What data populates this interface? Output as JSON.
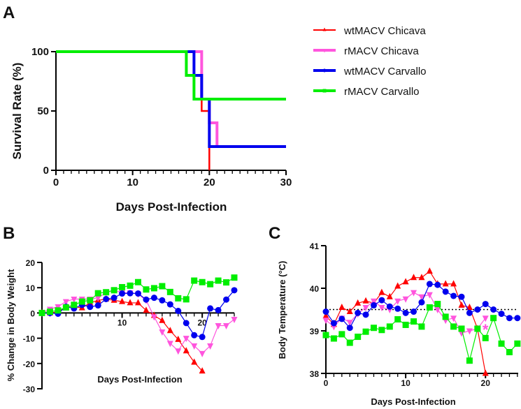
{
  "colors": {
    "wtChicava": "#ff0000",
    "rChicava": "#ff55dd",
    "wtCarvallo": "#0000ee",
    "rCarvallo": "#00ee00"
  },
  "legend": [
    "wtMACV Chicava",
    "rMACV Chicava",
    "wtMACV Carvallo",
    "rMACV Carvallo"
  ],
  "chart_data": [
    {
      "panel": "A",
      "type": "line",
      "subtype": "survival-step",
      "xlabel": "Days Post-Infection",
      "ylabel": "Survival Rate (%)",
      "xlim": [
        0,
        30
      ],
      "ylim": [
        0,
        100
      ],
      "xticks": [
        "0",
        "10",
        "20",
        "30"
      ],
      "yticks": [
        "0",
        "50",
        "100"
      ],
      "legend_position": "right",
      "series": [
        {
          "name": "wtMACV Chicava",
          "key": "wtChicava",
          "steps": [
            [
              0,
              100
            ],
            [
              19,
              50
            ],
            [
              20,
              0
            ]
          ],
          "end": 20
        },
        {
          "name": "rMACV Chicava",
          "key": "rChicava",
          "steps": [
            [
              0,
              100
            ],
            [
              19,
              60
            ],
            [
              20,
              40
            ],
            [
              21,
              20
            ]
          ],
          "end": 30
        },
        {
          "name": "wtMACV Carvallo",
          "key": "wtCarvallo",
          "steps": [
            [
              0,
              100
            ],
            [
              18,
              80
            ],
            [
              19,
              60
            ],
            [
              20,
              20
            ]
          ],
          "end": 30
        },
        {
          "name": "rMACV Carvallo",
          "key": "rCarvallo",
          "steps": [
            [
              0,
              100
            ],
            [
              17,
              80
            ],
            [
              18,
              60
            ]
          ],
          "end": 30
        }
      ]
    },
    {
      "panel": "B",
      "type": "line",
      "xlabel": "Days Post-Infection",
      "ylabel": "% Change in Body Weight",
      "xlim": [
        0,
        24
      ],
      "ylim": [
        -30,
        20
      ],
      "xticks": [
        "10",
        "20"
      ],
      "yticks": [
        "-30",
        "-20",
        "-10",
        "0",
        "10",
        "20"
      ],
      "series": [
        {
          "name": "wtMACV Chicava",
          "key": "wtChicava",
          "marker": "triangle-up",
          "values": [
            0,
            0,
            0.5,
            2,
            2.5,
            2,
            4,
            5,
            5.5,
            5,
            4.5,
            4,
            4,
            1,
            -1,
            -3,
            -7,
            -10.5,
            -15,
            -19.5,
            -23
          ]
        },
        {
          "name": "rMACV Chicava",
          "key": "rChicava",
          "marker": "triangle-down",
          "values": [
            0,
            1.5,
            2.5,
            4.5,
            5.5,
            5.5,
            5.5,
            6,
            8,
            9,
            8,
            8,
            7.5,
            5,
            -1.5,
            -7.5,
            -12,
            -15,
            -10,
            -13,
            -16,
            -13,
            -5,
            -5,
            -2.5
          ]
        },
        {
          "name": "wtMACV Carvallo",
          "key": "wtCarvallo",
          "marker": "circle",
          "values": [
            0,
            0,
            -0.3,
            2.5,
            1.8,
            3.2,
            2.4,
            3,
            5.5,
            6,
            7.7,
            7.8,
            7.7,
            5.3,
            6,
            5,
            3.4,
            0.8,
            -4,
            -8.8,
            -9.5,
            1.8,
            1.1,
            5.3,
            9
          ]
        },
        {
          "name": "rMACV Carvallo",
          "key": "rCarvallo",
          "marker": "square",
          "values": [
            0,
            0.5,
            1,
            2.2,
            3.2,
            4.5,
            5,
            7.8,
            8.2,
            9,
            10.2,
            10.8,
            12.2,
            9.3,
            9.8,
            10.6,
            8.3,
            5.8,
            5.4,
            12.8,
            12.2,
            11.4,
            12.8,
            12.1,
            14
          ]
        }
      ]
    },
    {
      "panel": "C",
      "type": "line",
      "xlabel": "Days Post-Infection",
      "ylabel": "Body Temperature (°C)",
      "xlim": [
        0,
        24
      ],
      "ylim": [
        38,
        41
      ],
      "xticks": [
        "0",
        "10",
        "20"
      ],
      "yticks": [
        "38",
        "39",
        "40",
        "41"
      ],
      "reference_line": 39.5,
      "annotation": {
        "text": "*",
        "x": 20,
        "y": 39.05,
        "key": "rChicava"
      },
      "series": [
        {
          "name": "wtMACV Chicava",
          "key": "wtChicava",
          "marker": "triangle-up",
          "values": [
            39.35,
            39.15,
            39.55,
            39.45,
            39.65,
            39.7,
            39.65,
            39.9,
            39.8,
            40.05,
            40.15,
            40.25,
            40.25,
            40.4,
            40.1,
            40.1,
            40.1,
            39.6,
            39.55,
            39.05,
            38.0
          ]
        },
        {
          "name": "rMACV Chicava",
          "key": "rChicava",
          "marker": "triangle-down",
          "values": [
            39.25,
            39.1,
            39.3,
            39.2,
            39.4,
            39.55,
            39.7,
            39.55,
            39.5,
            39.7,
            39.75,
            39.9,
            39.8,
            39.85,
            39.5,
            39.25,
            39.3,
            38.95,
            39.0,
            39.05,
            39.3
          ]
        },
        {
          "name": "wtMACV Carvallo",
          "key": "wtCarvallo",
          "marker": "circle",
          "values": [
            39.45,
            39.18,
            39.28,
            39.07,
            39.42,
            39.38,
            39.6,
            39.72,
            39.57,
            39.52,
            39.42,
            39.45,
            39.67,
            40.1,
            40.08,
            39.92,
            39.82,
            39.8,
            39.42,
            39.5,
            39.63,
            39.5,
            39.4,
            39.3,
            39.3
          ]
        },
        {
          "name": "rMACV Carvallo",
          "key": "rCarvallo",
          "marker": "square",
          "values": [
            38.9,
            38.82,
            38.92,
            38.72,
            38.86,
            38.98,
            39.07,
            39.02,
            39.1,
            39.27,
            39.14,
            39.22,
            39.1,
            39.55,
            39.63,
            39.33,
            39.1,
            39.05,
            38.3,
            39.05,
            38.83,
            39.3,
            38.7,
            38.5,
            38.7
          ]
        }
      ]
    }
  ],
  "panel_labels": [
    "A",
    "B",
    "C"
  ]
}
